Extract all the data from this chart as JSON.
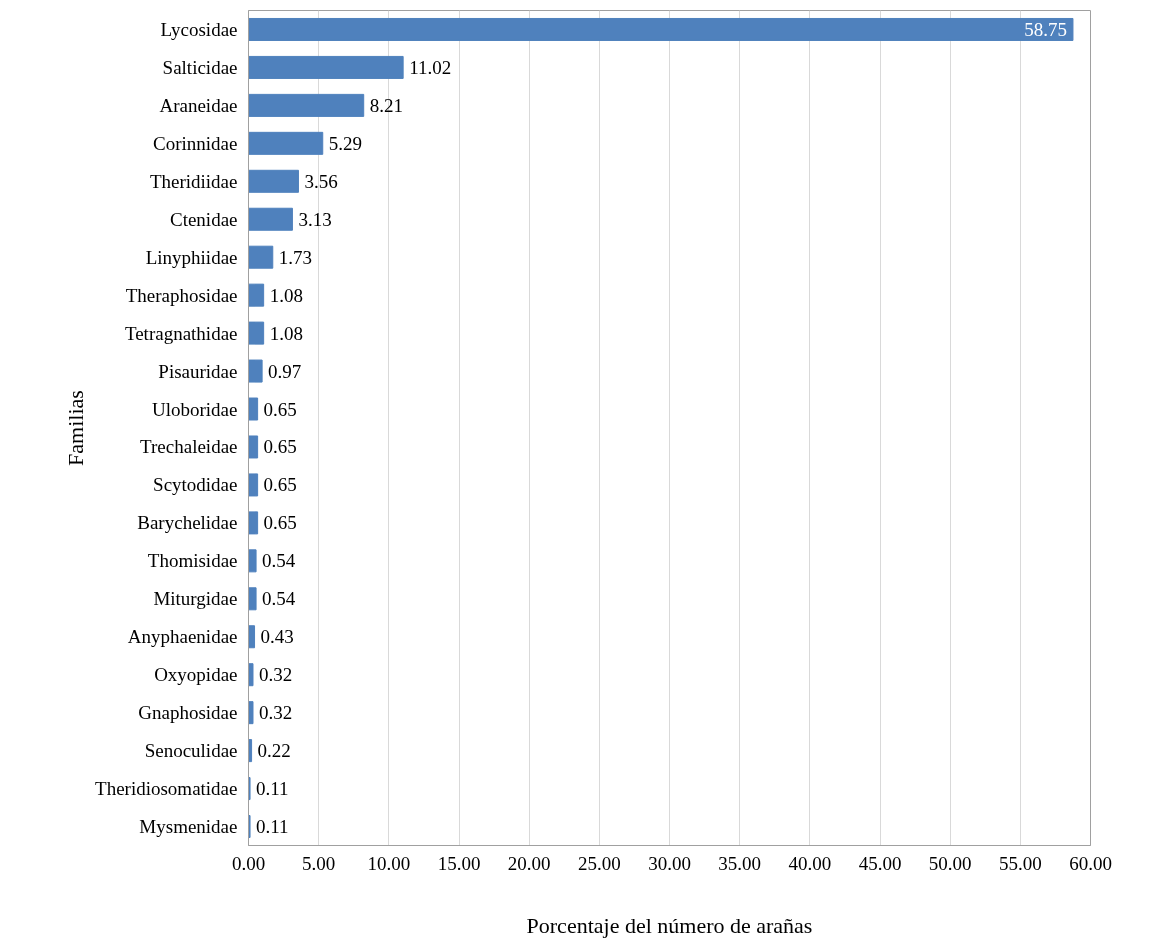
{
  "chart_data": {
    "type": "bar",
    "orientation": "horizontal",
    "xlabel": "Porcentaje del número de arañas",
    "ylabel": "Familias",
    "categories": [
      "Lycosidae",
      "Salticidae",
      "Araneidae",
      "Corinnidae",
      "Theridiidae",
      "Ctenidae",
      "Linyphiidae",
      "Theraphosidae",
      "Tetragnathidae",
      "Pisauridae",
      "Uloboridae",
      "Trechaleidae",
      "Scytodidae",
      "Barychelidae",
      "Thomisidae",
      "Miturgidae",
      "Anyphaenidae",
      "Oxyopidae",
      "Gnaphosidae",
      "Senoculidae",
      "Theridiosomatidae",
      "Mysmenidae"
    ],
    "values": [
      58.75,
      11.02,
      8.21,
      5.29,
      3.56,
      3.13,
      1.73,
      1.08,
      1.08,
      0.97,
      0.65,
      0.65,
      0.65,
      0.65,
      0.54,
      0.54,
      0.43,
      0.32,
      0.32,
      0.22,
      0.11,
      0.11
    ],
    "color": "#4f81bd",
    "xlim": [
      0,
      60
    ],
    "xticks": [
      {
        "value": 0,
        "label": "0.00"
      },
      {
        "value": 5,
        "label": "5.00"
      },
      {
        "value": 10,
        "label": "10.00"
      },
      {
        "value": 15,
        "label": "15.00"
      },
      {
        "value": 20,
        "label": "20.00"
      },
      {
        "value": 25,
        "label": "25.00"
      },
      {
        "value": 30,
        "label": "30.00"
      },
      {
        "value": 35,
        "label": "35.00"
      },
      {
        "value": 40,
        "label": "40.00"
      },
      {
        "value": 45,
        "label": "45.00"
      },
      {
        "value": 50,
        "label": "50.00"
      },
      {
        "value": 55,
        "label": "55.00"
      },
      {
        "value": 60,
        "label": "60.00"
      }
    ],
    "grid": "x",
    "data_labels": true
  }
}
